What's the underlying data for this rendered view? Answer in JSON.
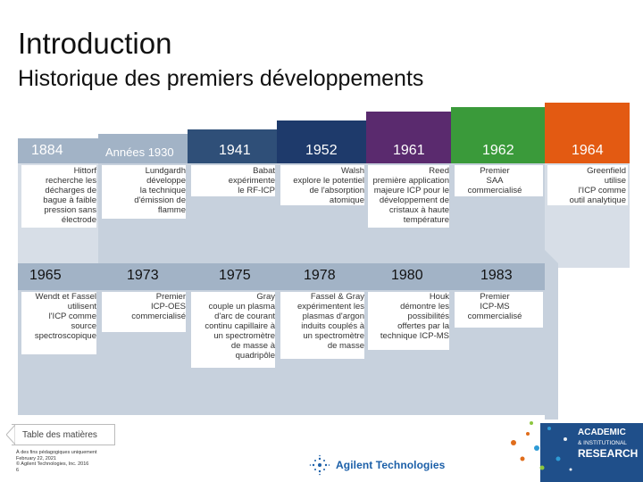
{
  "header": {
    "title": "Introduction",
    "subtitle": "Historique des premiers développements"
  },
  "timeline_row1": [
    {
      "year": "1884",
      "text": [
        "Hittorf",
        "recherche les",
        "décharges de",
        "bague à faible",
        "pression sans",
        "électrode"
      ]
    },
    {
      "year": "Années 1930",
      "text": [
        "Lundgardh",
        "développe",
        "la technique",
        "d'émission de",
        "flamme"
      ]
    },
    {
      "year": "1941",
      "text": [
        "Babat",
        "expérimente",
        "le RF-ICP"
      ]
    },
    {
      "year": "1952",
      "text": [
        "Walsh",
        "explore le potentiel",
        "de l'absorption",
        "atomique"
      ]
    },
    {
      "year": "1961",
      "text": [
        "Reed",
        "première application",
        "majeure ICP pour le",
        "développement de",
        "cristaux à haute",
        "température"
      ]
    },
    {
      "year": "1962",
      "text": [
        "Premier",
        "SAA",
        "commercialisé"
      ]
    },
    {
      "year": "1964",
      "text": [
        "Greenfield",
        "utilise",
        "l'ICP comme",
        "outil analytique"
      ]
    }
  ],
  "timeline_row2": [
    {
      "year": "1965",
      "text": [
        "Wendt et Fassel",
        "utilisent",
        "l'ICP comme",
        "source",
        "spectroscopique"
      ]
    },
    {
      "year": "1973",
      "text": [
        "Premier",
        "ICP-OES",
        "commercialisé"
      ]
    },
    {
      "year": "1975",
      "text": [
        "Gray",
        "couple un plasma",
        "d'arc de courant",
        "continu capillaire à",
        "un spectromètre",
        "de masse à",
        "quadripôle"
      ]
    },
    {
      "year": "1978",
      "text": [
        "Fassel & Gray",
        "expérimentent les",
        "plasmas d'argon",
        "induits couplés à",
        "un spectromètre",
        "de masse"
      ]
    },
    {
      "year": "1980",
      "text": [
        "Houk",
        "démontre les",
        "possibilités",
        "offertes par la",
        "technique ICP-MS"
      ]
    },
    {
      "year": "1983",
      "text": [
        "Premier",
        "ICP-MS",
        "commercialisé"
      ]
    }
  ],
  "nav": {
    "toc_label": "Table des matières"
  },
  "footer": {
    "lines": [
      "À des fins pédagogiques uniquement",
      "February 22, 2021",
      "© Agilent Technologies, Inc. 2016",
      "6"
    ],
    "brand": "Agilent Technologies",
    "program": [
      "ACADEMIC",
      "& INSTITUTIONAL",
      "RESEARCH"
    ]
  },
  "colors": {
    "c1884": "#a2b3c6",
    "c1930": "#a2b3c6",
    "c1941": "#2f4f78",
    "c1952": "#1e3a6b",
    "c1961": "#5a2a6e",
    "c1962": "#3a9a3a",
    "c1964": "#e35a12",
    "row2_a": "#a2b3c6",
    "row2_b": "#9aaac0"
  }
}
